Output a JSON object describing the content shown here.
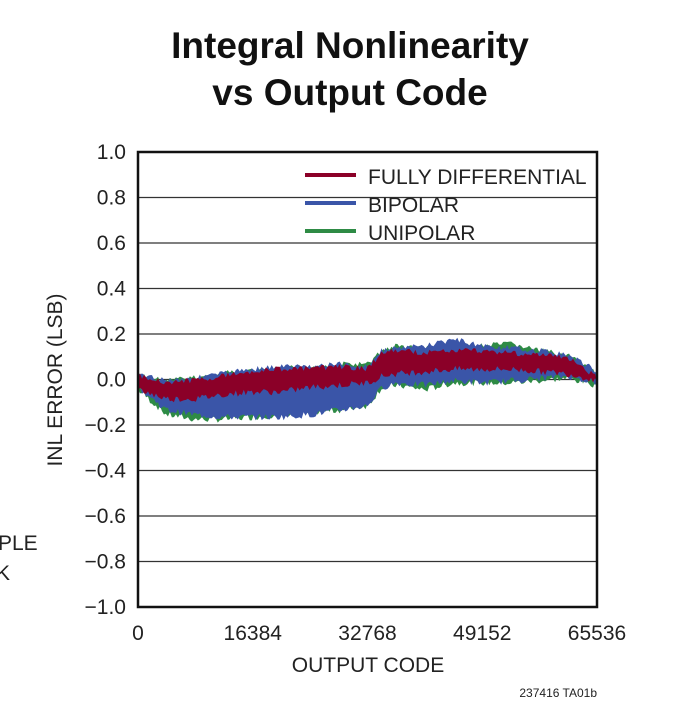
{
  "chart_data": {
    "type": "area",
    "title": [
      "Integral Nonlinearity",
      "vs Output Code"
    ],
    "xlabel": "OUTPUT CODE",
    "ylabel": "INL ERROR (LSB)",
    "xlim": [
      0,
      65536
    ],
    "ylim": [
      -1.0,
      1.0
    ],
    "xticks": [
      "0",
      "16384",
      "32768",
      "49152",
      "65536"
    ],
    "yticks": [
      "1.0",
      "0.8",
      "0.6",
      "0.4",
      "0.2",
      "0.0",
      "−0.2",
      "−0.4",
      "−0.6",
      "−0.8",
      "−1.0"
    ],
    "grid": "horizontal",
    "legend_position": "top-right",
    "x": [
      0,
      4096,
      8192,
      12288,
      16384,
      20480,
      24576,
      28672,
      32768,
      34816,
      36864,
      40960,
      45056,
      49152,
      53248,
      57344,
      61440,
      65536
    ],
    "series": [
      {
        "name": "UNIPOLAR",
        "color": "#2e8b45",
        "upper": [
          0.03,
          0.01,
          0.02,
          0.04,
          0.05,
          0.06,
          0.07,
          0.08,
          0.08,
          0.14,
          0.16,
          0.15,
          0.16,
          0.16,
          0.17,
          0.14,
          0.12,
          0.04
        ],
        "lower": [
          -0.06,
          -0.17,
          -0.19,
          -0.19,
          -0.18,
          -0.17,
          -0.16,
          -0.15,
          -0.13,
          -0.05,
          -0.04,
          -0.06,
          -0.03,
          -0.03,
          -0.03,
          -0.02,
          -0.01,
          -0.04
        ]
      },
      {
        "name": "BIPOLAR",
        "color": "#3a55a8",
        "upper": [
          0.03,
          0.01,
          0.02,
          0.04,
          0.06,
          0.07,
          0.07,
          0.08,
          0.07,
          0.14,
          0.15,
          0.16,
          0.19,
          0.16,
          0.15,
          0.14,
          0.12,
          0.05
        ],
        "lower": [
          -0.05,
          -0.15,
          -0.17,
          -0.18,
          -0.18,
          -0.18,
          -0.17,
          -0.15,
          -0.13,
          -0.05,
          -0.03,
          -0.04,
          -0.02,
          -0.03,
          -0.02,
          -0.01,
          0.0,
          -0.03
        ]
      },
      {
        "name": "FULLY DIFFERENTIAL",
        "color": "#8b0028",
        "upper": [
          0.03,
          0.0,
          0.01,
          0.03,
          0.05,
          0.06,
          0.06,
          0.07,
          0.06,
          0.13,
          0.14,
          0.13,
          0.14,
          0.14,
          0.13,
          0.12,
          0.11,
          0.02
        ],
        "lower": [
          -0.06,
          -0.1,
          -0.1,
          -0.08,
          -0.07,
          -0.07,
          -0.05,
          -0.04,
          -0.03,
          0.0,
          0.01,
          0.02,
          0.03,
          0.03,
          0.03,
          0.02,
          0.01,
          -0.02
        ]
      }
    ],
    "legend_order": [
      "FULLY DIFFERENTIAL",
      "BIPOLAR",
      "UNIPOLAR"
    ]
  },
  "partial_text": {
    "line1": "PLE",
    "line2": "K"
  },
  "figure_code": "237416 TA01b"
}
